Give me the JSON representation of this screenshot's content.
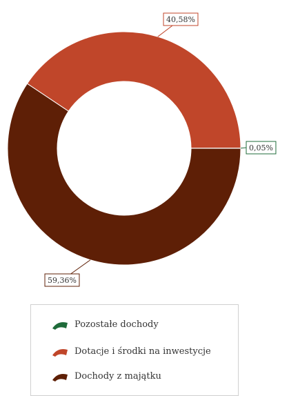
{
  "chart_data": {
    "type": "pie",
    "variant": "donut",
    "title": "",
    "categories": [
      "Pozostałe dochody",
      "Dotacje i środki na inwestycje",
      "Dochody z majątku"
    ],
    "values": [
      0.05,
      40.58,
      59.36
    ],
    "labels": [
      "0,05%",
      "40,58%",
      "59,36%"
    ],
    "colors": [
      "#1f6b3a",
      "#c0462a",
      "#5e1f06"
    ],
    "legend_position": "bottom"
  }
}
